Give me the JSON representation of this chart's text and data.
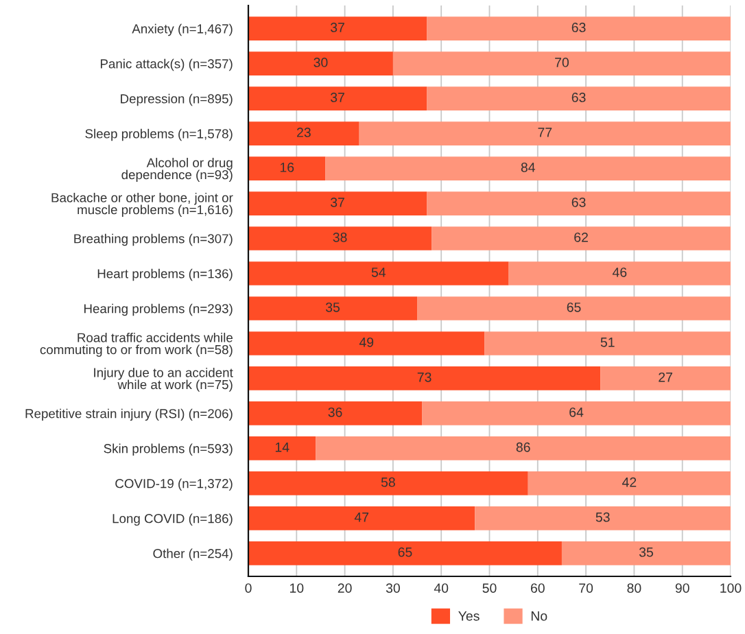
{
  "chart_data": {
    "type": "bar",
    "orientation": "horizontal",
    "stacked": true,
    "categories": [
      "Anxiety (n=1,467)",
      "Panic attack(s) (n=357)",
      "Depression (n=895)",
      "Sleep problems (n=1,578)",
      "Alcohol or drug\ndependence (n=93)",
      "Backache or other bone, joint or\nmuscle problems (n=1,616)",
      "Breathing problems (n=307)",
      "Heart problems (n=136)",
      "Hearing problems (n=293)",
      "Road traffic accidents while\ncommuting to or from work (n=58)",
      "Injury due to an accident\nwhile at work (n=75)",
      "Repetitive strain injury (RSI) (n=206)",
      "Skin problems (n=593)",
      "COVID-19 (n=1,372)",
      "Long COVID (n=186)",
      "Other (n=254)"
    ],
    "series": [
      {
        "name": "Yes",
        "color": "#ff4d26",
        "values": [
          37,
          30,
          37,
          23,
          16,
          37,
          38,
          54,
          35,
          49,
          73,
          36,
          14,
          58,
          47,
          65
        ]
      },
      {
        "name": "No",
        "color": "#ff957b",
        "values": [
          63,
          70,
          63,
          77,
          84,
          63,
          62,
          46,
          65,
          51,
          27,
          64,
          86,
          42,
          53,
          35
        ]
      }
    ],
    "xlim": [
      0,
      100
    ],
    "xticks": [
      0,
      10,
      20,
      30,
      40,
      50,
      60,
      70,
      80,
      90,
      100
    ],
    "grid": "x",
    "legend": "bottom",
    "data_labels": true
  }
}
